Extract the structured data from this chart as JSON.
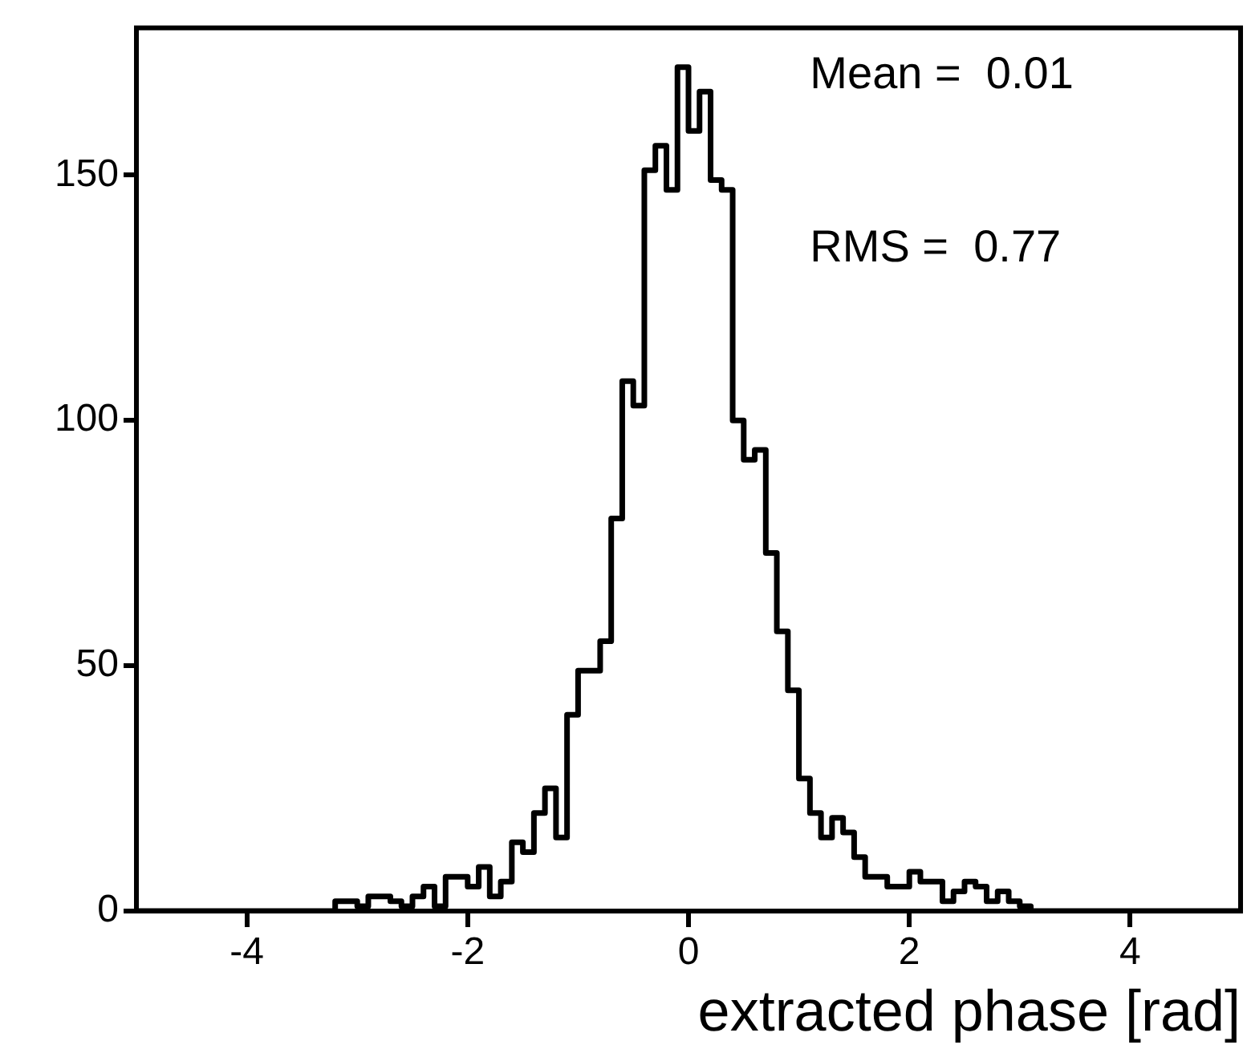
{
  "chart_data": {
    "type": "histogram",
    "xlabel": "extracted phase [rad]",
    "annotations": [
      "Mean =  0.01",
      "RMS =  0.77"
    ],
    "bins": [
      -5,
      -4.9,
      -4.8,
      -4.7,
      -4.6,
      -4.5,
      -4.4,
      -4.3,
      -4.2,
      -4.1,
      -4,
      -3.9,
      -3.8,
      -3.7,
      -3.6,
      -3.5,
      -3.4,
      -3.3,
      -3.2,
      -3.1,
      -3,
      -2.9,
      -2.8,
      -2.7,
      -2.6,
      -2.5,
      -2.4,
      -2.3,
      -2.2,
      -2.1,
      -2,
      -1.9,
      -1.8,
      -1.7,
      -1.6,
      -1.5,
      -1.4,
      -1.3,
      -1.2,
      -1.1,
      -1,
      -0.9,
      -0.8,
      -0.7,
      -0.6,
      -0.5,
      -0.4,
      -0.3,
      -0.2,
      -0.1,
      0,
      0.1,
      0.2,
      0.3,
      0.4,
      0.5,
      0.6,
      0.7,
      0.8,
      0.9,
      1,
      1.1,
      1.2,
      1.3,
      1.4,
      1.5,
      1.6,
      1.7,
      1.8,
      1.9,
      2,
      2.1,
      2.2,
      2.3,
      2.4,
      2.5,
      2.6,
      2.7,
      2.8,
      2.9,
      3,
      3.1,
      3.2,
      3.3,
      3.4,
      3.5,
      3.6,
      3.7,
      3.8,
      3.9,
      4,
      4.1,
      4.2,
      4.3,
      4.4,
      4.5,
      4.6,
      4.7,
      4.8,
      4.9,
      5
    ],
    "values": [
      0,
      0,
      0,
      0,
      0,
      0,
      0,
      0,
      0,
      0,
      0,
      0,
      0,
      0,
      0,
      0,
      0,
      0,
      2,
      2,
      1,
      3,
      3,
      2,
      1,
      3,
      5,
      1,
      7,
      7,
      5,
      9,
      3,
      6,
      14,
      12,
      20,
      25,
      15,
      40,
      49,
      49,
      55,
      80,
      108,
      103,
      151,
      156,
      147,
      172,
      159,
      167,
      149,
      147,
      100,
      92,
      94,
      73,
      57,
      45,
      27,
      20,
      15,
      19,
      16,
      11,
      7,
      7,
      5,
      5,
      8,
      6,
      6,
      2,
      4,
      6,
      5,
      2,
      4,
      2,
      1,
      0,
      0,
      0,
      0,
      0,
      0,
      0,
      0,
      0,
      0,
      0,
      0,
      0,
      0,
      0,
      0,
      0,
      0,
      0
    ],
    "color": "#000000",
    "xlim": [
      -5,
      5
    ],
    "xticks": [
      -4,
      -2,
      0,
      2,
      4
    ],
    "ylim": [
      0,
      180
    ],
    "yticks": [
      0,
      50,
      100,
      150
    ],
    "grid": false,
    "legend": false
  }
}
